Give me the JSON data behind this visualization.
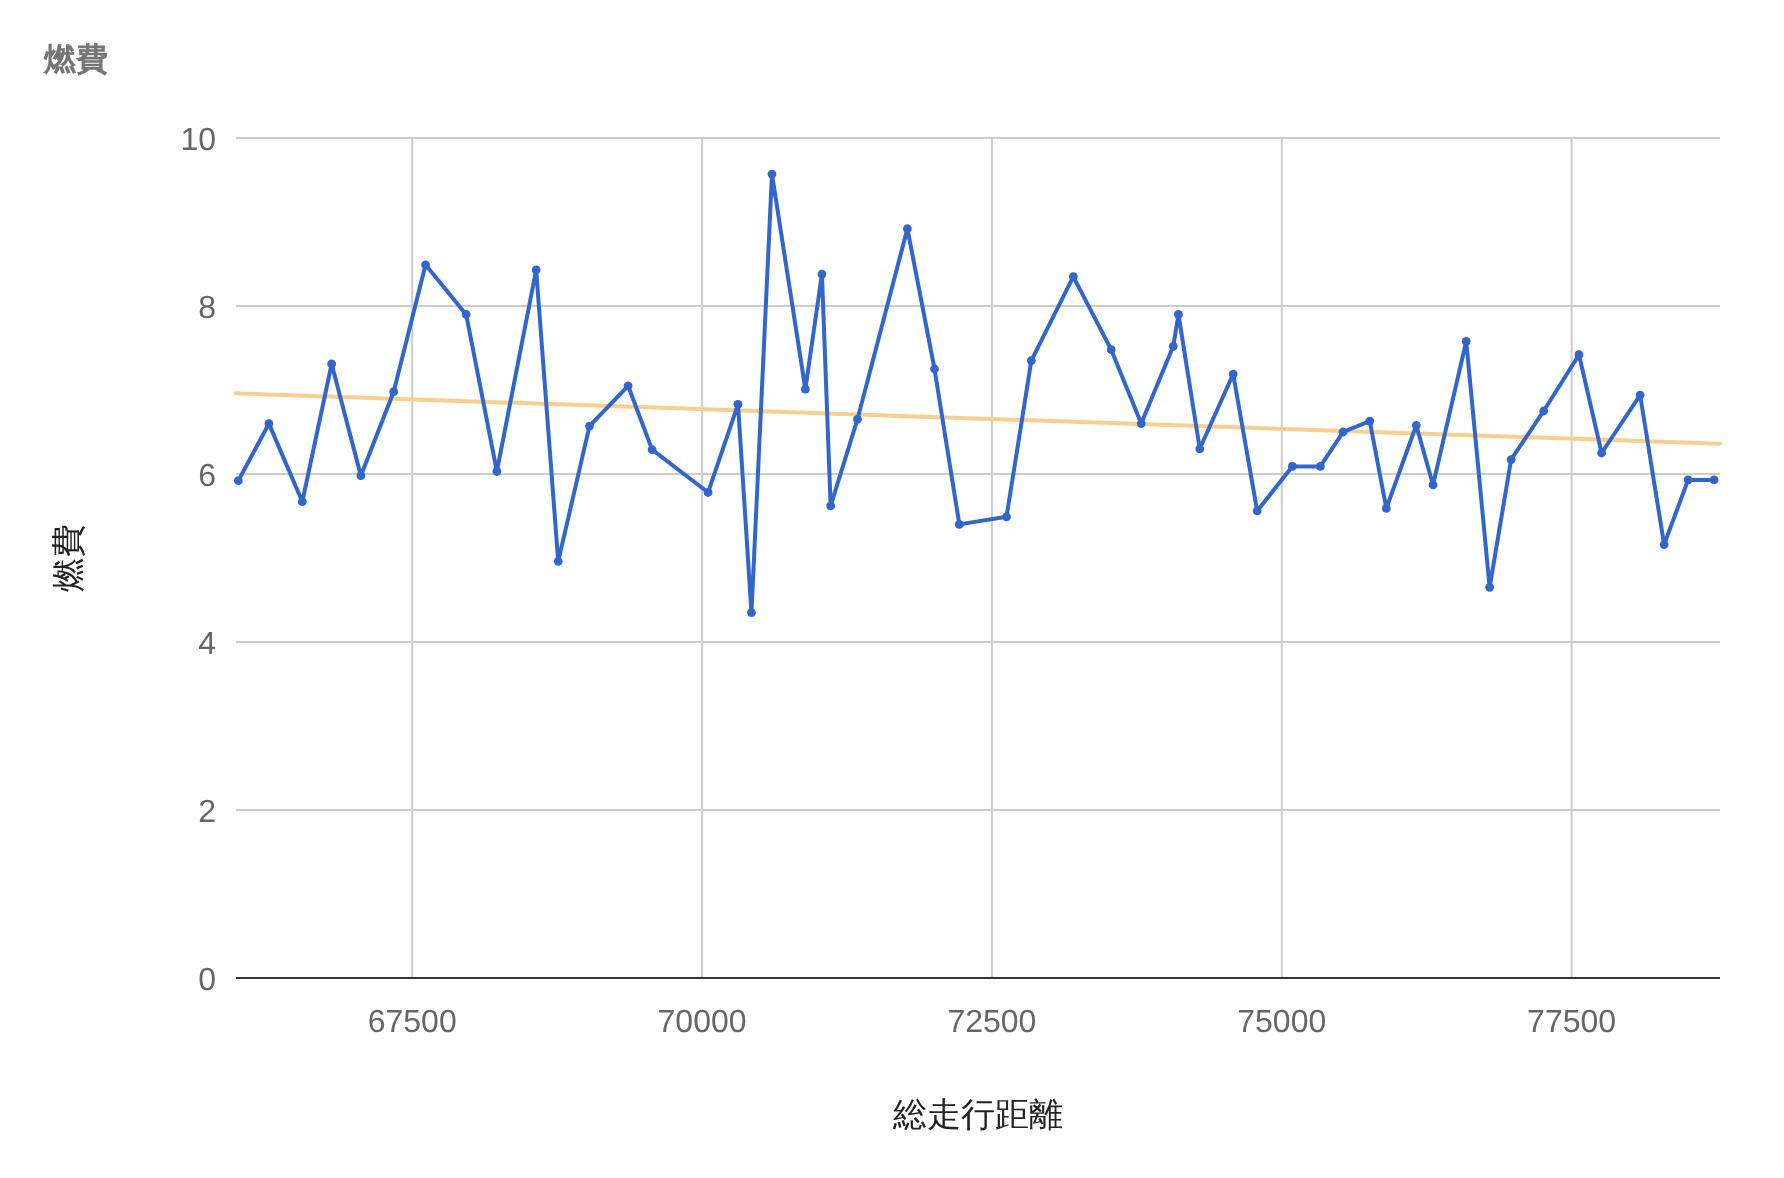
{
  "chart_data": {
    "type": "line",
    "title": "燃費",
    "xlabel": "総走行距離",
    "ylabel": "燃費",
    "xlim": [
      65980,
      78780
    ],
    "xticks": [
      67500,
      70000,
      72500,
      75000,
      77500
    ],
    "ylim": [
      0,
      10
    ],
    "yticks": [
      0,
      2,
      4,
      6,
      8,
      10
    ],
    "grid": true,
    "marker": "circle",
    "line_style": "solid",
    "series": [
      {
        "color": "#3366cc",
        "x": [
          66000,
          66264,
          66552,
          66805,
          67057,
          67340,
          67615,
          67965,
          68230,
          68569,
          68759,
          69029,
          69362,
          69569,
          70052,
          70310,
          70426,
          70603,
          70891,
          71034,
          71109,
          71340,
          71771,
          72005,
          72219,
          72626,
          72840,
          73202,
          73529,
          73788,
          74064,
          74109,
          74293,
          74581,
          74788,
          75091,
          75333,
          75529,
          75759,
          75902,
          76160,
          76305,
          76591,
          76793,
          76978,
          77259,
          77564,
          77759,
          78091,
          78298,
          78505,
          78729
        ],
        "values": [
          5.92,
          6.6,
          5.67,
          7.31,
          5.98,
          6.98,
          8.49,
          7.9,
          6.03,
          8.43,
          4.96,
          6.57,
          7.05,
          6.29,
          5.78,
          6.83,
          4.35,
          9.57,
          7.01,
          8.38,
          5.62,
          6.65,
          8.92,
          7.25,
          5.4,
          5.49,
          7.35,
          8.35,
          7.48,
          6.6,
          7.52,
          7.9,
          6.3,
          7.19,
          5.56,
          6.09,
          6.09,
          6.5,
          6.63,
          5.59,
          6.58,
          5.87,
          7.58,
          4.65,
          6.17,
          6.75,
          7.42,
          6.25,
          6.94,
          5.16,
          5.93,
          5.93
        ]
      },
      {
        "type": "line",
        "marker": "none",
        "color": "#f9cf8f",
        "x": [
          65980,
          78780
        ],
        "values": [
          6.96,
          6.36
        ]
      }
    ]
  }
}
